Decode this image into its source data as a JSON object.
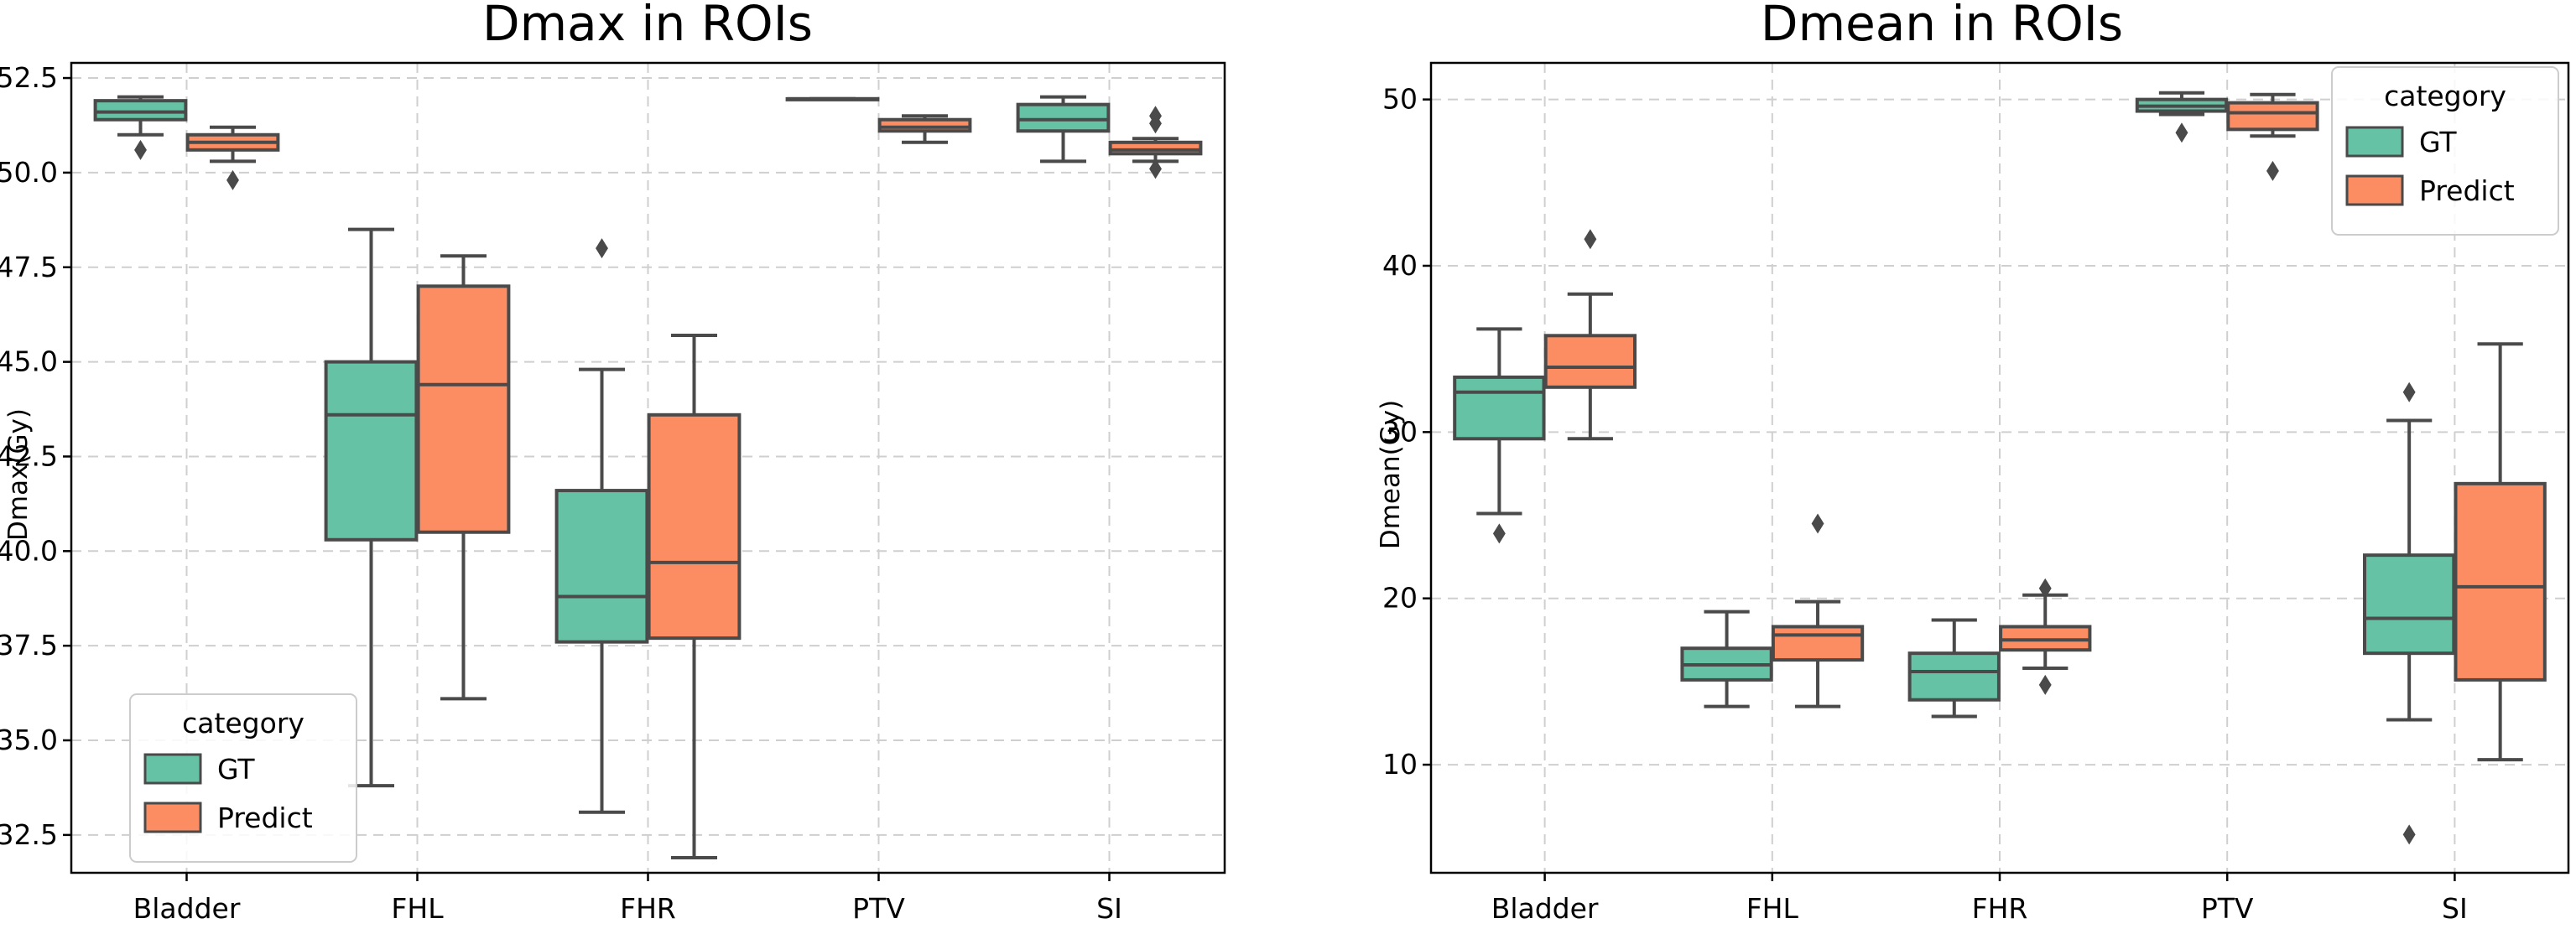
{
  "chart_data": [
    {
      "type": "box",
      "title": "Dmax in ROIs",
      "xlabel": "",
      "ylabel": "Dmax(Gy)",
      "ylim": [
        31.5,
        52.9
      ],
      "yticks": [
        32.5,
        35.0,
        37.5,
        40.0,
        42.5,
        45.0,
        47.5,
        50.0,
        52.5
      ],
      "ytick_labels": [
        "32.5",
        "35.0",
        "37.5",
        "40.0",
        "42.5",
        "45.0",
        "47.5",
        "50.0",
        "52.5"
      ],
      "categories": [
        "Bladder",
        "FHL",
        "FHR",
        "PTV",
        "SI"
      ],
      "grid": true,
      "legend": {
        "title": "category",
        "position": "lower-left",
        "entries": [
          "GT",
          "Predict"
        ]
      },
      "series": [
        {
          "name": "GT",
          "color": "#66c2a5",
          "boxes": [
            {
              "whislo": 51.0,
              "q1": 51.4,
              "med": 51.6,
              "q3": 51.9,
              "whishi": 52.0,
              "fliers": [
                50.6
              ]
            },
            {
              "whislo": 33.8,
              "q1": 40.3,
              "med": 43.6,
              "q3": 45.0,
              "whishi": 48.5,
              "fliers": []
            },
            {
              "whislo": 33.1,
              "q1": 37.6,
              "med": 38.8,
              "q3": 41.6,
              "whishi": 44.8,
              "fliers": [
                48.0
              ]
            },
            {
              "whislo": 51.95,
              "q1": 51.95,
              "med": 51.95,
              "q3": 51.95,
              "whishi": 51.95,
              "fliers": []
            },
            {
              "whislo": 50.3,
              "q1": 51.1,
              "med": 51.4,
              "q3": 51.8,
              "whishi": 52.0,
              "fliers": []
            }
          ]
        },
        {
          "name": "Predict",
          "color": "#fc8d62",
          "boxes": [
            {
              "whislo": 50.3,
              "q1": 50.6,
              "med": 50.8,
              "q3": 51.0,
              "whishi": 51.2,
              "fliers": [
                49.8
              ]
            },
            {
              "whislo": 36.1,
              "q1": 40.5,
              "med": 44.4,
              "q3": 47.0,
              "whishi": 47.8,
              "fliers": []
            },
            {
              "whislo": 31.9,
              "q1": 37.7,
              "med": 39.7,
              "q3": 43.6,
              "whishi": 45.7,
              "fliers": []
            },
            {
              "whislo": 50.8,
              "q1": 51.1,
              "med": 51.2,
              "q3": 51.4,
              "whishi": 51.5,
              "fliers": []
            },
            {
              "whislo": 50.3,
              "q1": 50.5,
              "med": 50.6,
              "q3": 50.8,
              "whishi": 50.9,
              "fliers": [
                51.5,
                51.3,
                50.1
              ]
            }
          ]
        }
      ]
    },
    {
      "type": "box",
      "title": "Dmean in ROIs",
      "xlabel": "",
      "ylabel": "Dmean(Gy)",
      "ylim": [
        3.5,
        52.2
      ],
      "yticks": [
        10,
        20,
        30,
        40,
        50
      ],
      "ytick_labels": [
        "10",
        "20",
        "30",
        "40",
        "50"
      ],
      "categories": [
        "Bladder",
        "FHL",
        "FHR",
        "PTV",
        "SI"
      ],
      "grid": true,
      "legend": {
        "title": "category",
        "position": "top-right",
        "entries": [
          "GT",
          "Predict"
        ]
      },
      "series": [
        {
          "name": "GT",
          "color": "#66c2a5",
          "boxes": [
            {
              "whislo": 25.1,
              "q1": 29.6,
              "med": 32.4,
              "q3": 33.3,
              "whishi": 36.2,
              "fliers": [
                23.9
              ]
            },
            {
              "whislo": 13.5,
              "q1": 15.1,
              "med": 16.0,
              "q3": 17.0,
              "whishi": 19.2,
              "fliers": []
            },
            {
              "whislo": 12.9,
              "q1": 13.9,
              "med": 15.6,
              "q3": 16.7,
              "whishi": 18.7,
              "fliers": []
            },
            {
              "whislo": 49.1,
              "q1": 49.3,
              "med": 49.6,
              "q3": 50.0,
              "whishi": 50.4,
              "fliers": [
                48.0
              ]
            },
            {
              "whislo": 12.7,
              "q1": 16.7,
              "med": 18.8,
              "q3": 22.6,
              "whishi": 30.7,
              "fliers": [
                32.4,
                5.8
              ]
            }
          ]
        },
        {
          "name": "Predict",
          "color": "#fc8d62",
          "boxes": [
            {
              "whislo": 29.6,
              "q1": 32.7,
              "med": 33.9,
              "q3": 35.8,
              "whishi": 38.3,
              "fliers": [
                41.6
              ]
            },
            {
              "whislo": 13.5,
              "q1": 16.3,
              "med": 17.8,
              "q3": 18.3,
              "whishi": 19.8,
              "fliers": [
                24.5
              ]
            },
            {
              "whislo": 15.8,
              "q1": 16.9,
              "med": 17.5,
              "q3": 18.3,
              "whishi": 20.2,
              "fliers": [
                20.6,
                14.8
              ]
            },
            {
              "whislo": 47.8,
              "q1": 48.2,
              "med": 49.2,
              "q3": 49.8,
              "whishi": 50.3,
              "fliers": [
                45.7
              ]
            },
            {
              "whislo": 10.3,
              "q1": 15.1,
              "med": 20.7,
              "q3": 26.9,
              "whishi": 35.3,
              "fliers": []
            }
          ]
        }
      ]
    }
  ]
}
